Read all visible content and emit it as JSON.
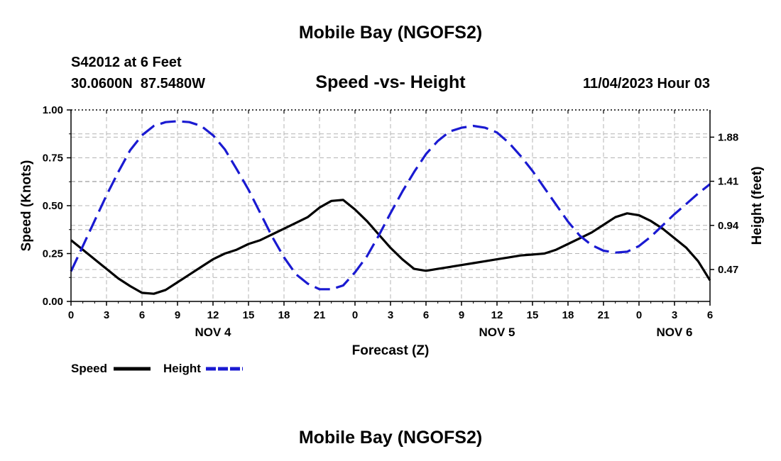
{
  "header": {
    "title": "Mobile Bay (NGOFS2)",
    "station": "S42012 at 6 Feet",
    "coords": "30.0600N  87.5480W",
    "chart_title": "Speed -vs- Height",
    "datetime": "11/04/2023 Hour 03"
  },
  "footer": {
    "title": "Mobile Bay (NGOFS2)"
  },
  "colors": {
    "speed": "#000000",
    "height": "#1a1ad1"
  },
  "chart_data": {
    "type": "line",
    "title": "Speed -vs- Height",
    "xlabel": "Forecast (Z)",
    "ylabel": "Speed (Knots)",
    "y2label": "Height (feet)",
    "xlim": [
      0,
      54
    ],
    "ylim": [
      0,
      1
    ],
    "y2lim": [
      0.13,
      2.17
    ],
    "x_ticks": [
      0,
      3,
      6,
      9,
      12,
      15,
      18,
      21,
      24,
      27,
      30,
      33,
      36,
      39,
      42,
      45,
      48,
      51,
      54
    ],
    "x_tick_labels": [
      "0",
      "3",
      "6",
      "9",
      "12",
      "15",
      "18",
      "21",
      "0",
      "3",
      "6",
      "9",
      "12",
      "15",
      "18",
      "21",
      "0",
      "3",
      "6"
    ],
    "day_labels": [
      {
        "label": "NOV 4",
        "x": 12
      },
      {
        "label": "NOV 5",
        "x": 36
      },
      {
        "label": "NOV 6",
        "x": 51
      }
    ],
    "y_ticks": [
      0.0,
      0.25,
      0.5,
      0.75,
      1.0
    ],
    "y_tick_labels": [
      "0.00",
      "0.25",
      "0.50",
      "0.75",
      "1.00"
    ],
    "y2_ticks": [
      0.47,
      0.94,
      1.41,
      1.88
    ],
    "y2_tick_labels": [
      "0.47",
      "0.94",
      "1.41",
      "1.88"
    ],
    "grid": true,
    "legend_position": "bottom-left",
    "series": [
      {
        "name": "Speed",
        "axis": "left",
        "style": "solid",
        "x": [
          0,
          1,
          2,
          3,
          4,
          5,
          6,
          7,
          8,
          9,
          10,
          11,
          12,
          13,
          14,
          15,
          16,
          17,
          18,
          19,
          20,
          21,
          22,
          23,
          24,
          25,
          26,
          27,
          28,
          29,
          30,
          31,
          32,
          33,
          34,
          35,
          36,
          37,
          38,
          39,
          40,
          41,
          42,
          43,
          44,
          45,
          46,
          47,
          48,
          49,
          50,
          51,
          52,
          53,
          54
        ],
        "values": [
          0.32,
          0.27,
          0.22,
          0.17,
          0.12,
          0.08,
          0.045,
          0.04,
          0.06,
          0.1,
          0.14,
          0.18,
          0.22,
          0.25,
          0.27,
          0.3,
          0.32,
          0.35,
          0.38,
          0.41,
          0.44,
          0.49,
          0.525,
          0.53,
          0.48,
          0.42,
          0.35,
          0.28,
          0.22,
          0.17,
          0.16,
          0.17,
          0.18,
          0.19,
          0.2,
          0.21,
          0.22,
          0.23,
          0.24,
          0.245,
          0.25,
          0.27,
          0.3,
          0.33,
          0.36,
          0.4,
          0.44,
          0.46,
          0.45,
          0.42,
          0.38,
          0.33,
          0.28,
          0.21,
          0.11
        ]
      },
      {
        "name": "Height",
        "axis": "right",
        "style": "dashed",
        "x": [
          0,
          1,
          2,
          3,
          4,
          5,
          6,
          7,
          8,
          9,
          10,
          11,
          12,
          13,
          14,
          15,
          16,
          17,
          18,
          19,
          20,
          21,
          22,
          23,
          24,
          25,
          26,
          27,
          28,
          29,
          30,
          31,
          32,
          33,
          34,
          35,
          36,
          37,
          38,
          39,
          40,
          41,
          42,
          43,
          44,
          45,
          46,
          47,
          48,
          49,
          50,
          51,
          52,
          53,
          54
        ],
        "values": [
          0.45,
          0.72,
          0.99,
          1.26,
          1.51,
          1.74,
          1.9,
          2.0,
          2.04,
          2.05,
          2.04,
          2.0,
          1.9,
          1.75,
          1.54,
          1.32,
          1.07,
          0.82,
          0.6,
          0.42,
          0.32,
          0.26,
          0.26,
          0.3,
          0.44,
          0.61,
          0.83,
          1.07,
          1.3,
          1.51,
          1.7,
          1.84,
          1.94,
          1.98,
          2.0,
          1.98,
          1.93,
          1.82,
          1.68,
          1.52,
          1.34,
          1.16,
          0.98,
          0.83,
          0.73,
          0.67,
          0.65,
          0.66,
          0.72,
          0.82,
          0.94,
          1.06,
          1.17,
          1.28,
          1.38
        ]
      }
    ],
    "legend": [
      {
        "name": "Speed",
        "style": "solid"
      },
      {
        "name": "Height",
        "style": "dashed"
      }
    ]
  }
}
